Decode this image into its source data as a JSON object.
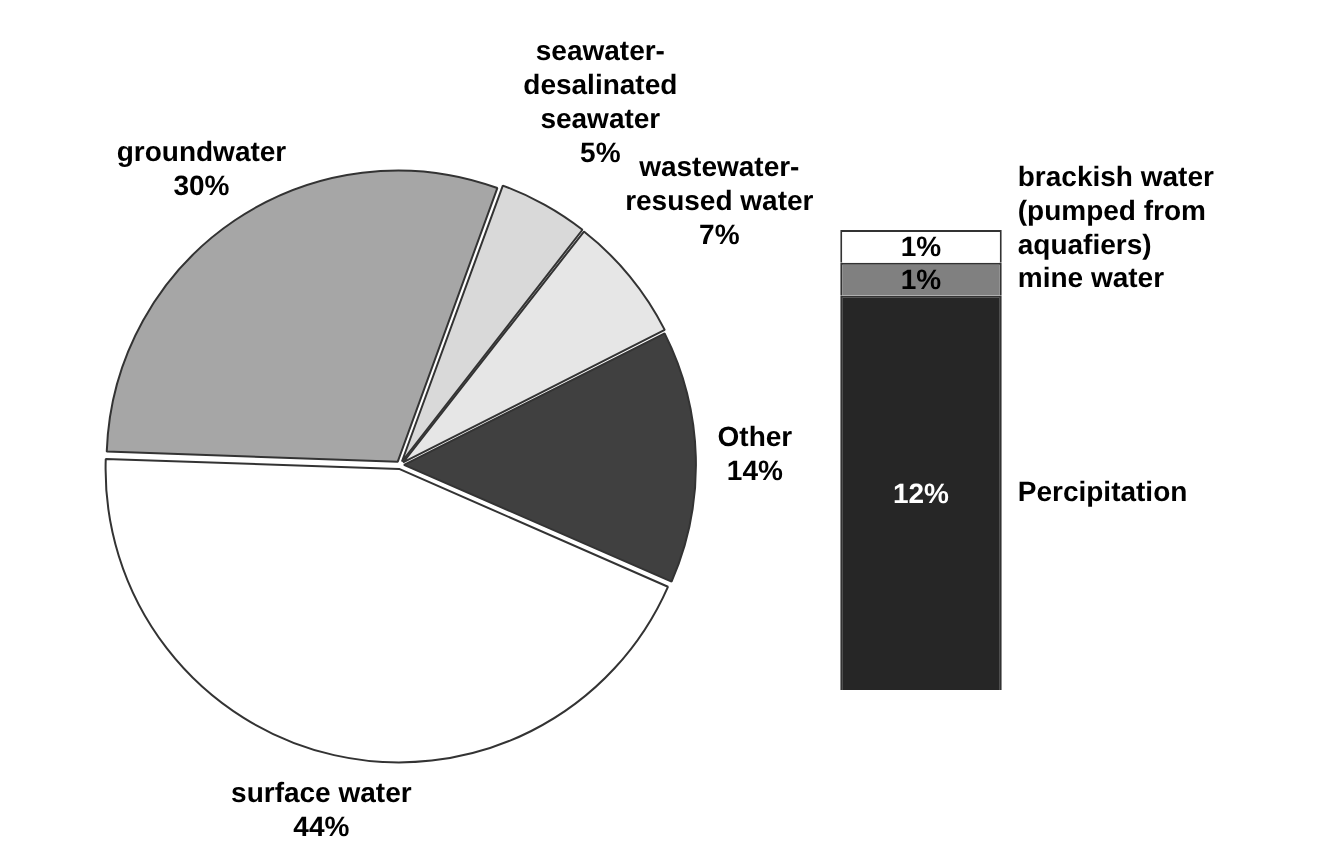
{
  "chart_data": [
    {
      "type": "pie",
      "categories": [
        "seawater-desalinated seawater",
        "wastewater-resused water",
        "Other",
        "surface water",
        "groundwater"
      ],
      "values": [
        5,
        7,
        14,
        44,
        30
      ],
      "value_labels": [
        "5%",
        "7%",
        "14%",
        "44%",
        "30%"
      ],
      "colors": [
        "#d9d9d9",
        "#e6e6e6",
        "#404040",
        "#ffffff",
        "#a6a6a6"
      ],
      "legend": false
    },
    {
      "type": "bar",
      "stacked": true,
      "categories": [
        null
      ],
      "legend": false,
      "series": [
        {
          "name": "Percipitation",
          "color": "#262626",
          "values": [
            12
          ],
          "value_labels": [
            "12%"
          ]
        },
        {
          "name": "mine water",
          "color": "#808080",
          "values": [
            1
          ],
          "value_labels": [
            "1%"
          ]
        },
        {
          "name": "brackish water (pumped from aquafiers)",
          "color": "#ffffff",
          "values": [
            1
          ],
          "value_labels": [
            "1%"
          ]
        }
      ]
    }
  ]
}
